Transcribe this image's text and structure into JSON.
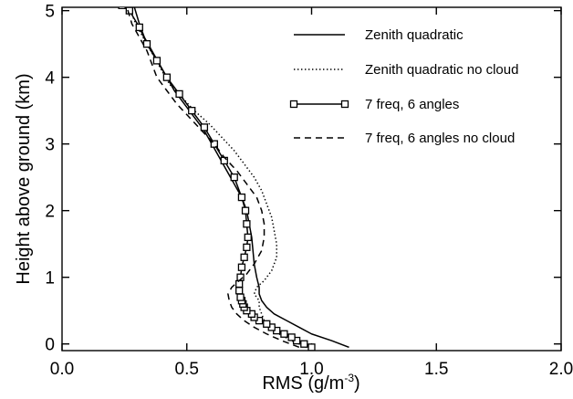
{
  "chart_data": {
    "type": "line",
    "title": "",
    "xlabel": "RMS (g/m⁻³)",
    "xlabel_main": "RMS (g/m",
    "xlabel_sup": "-3",
    "xlabel_end": ")",
    "ylabel": "Height above ground (km)",
    "xlim": [
      0.0,
      2.0
    ],
    "ylim": [
      -0.1,
      5.05
    ],
    "xticks": [
      0.0,
      0.5,
      1.0,
      1.5,
      2.0
    ],
    "xtick_labels": [
      "0.0",
      "0.5",
      "1.0",
      "1.5",
      "2.0"
    ],
    "yticks": [
      0,
      1,
      2,
      3,
      4,
      5
    ],
    "ytick_labels": [
      "0",
      "1",
      "2",
      "3",
      "4",
      "5"
    ],
    "grid": false,
    "legend_position": "top-right",
    "series": [
      {
        "name": "Zenith quadratic",
        "style": "solid",
        "marker": "none",
        "points": [
          [
            1.15,
            -0.05
          ],
          [
            1.08,
            0.05
          ],
          [
            1.0,
            0.15
          ],
          [
            0.95,
            0.25
          ],
          [
            0.9,
            0.35
          ],
          [
            0.85,
            0.45
          ],
          [
            0.82,
            0.55
          ],
          [
            0.8,
            0.65
          ],
          [
            0.79,
            0.75
          ],
          [
            0.79,
            0.85
          ],
          [
            0.78,
            1.0
          ],
          [
            0.77,
            1.2
          ],
          [
            0.765,
            1.4
          ],
          [
            0.76,
            1.6
          ],
          [
            0.75,
            1.8
          ],
          [
            0.74,
            2.0
          ],
          [
            0.72,
            2.2
          ],
          [
            0.69,
            2.4
          ],
          [
            0.66,
            2.6
          ],
          [
            0.63,
            2.8
          ],
          [
            0.6,
            3.0
          ],
          [
            0.57,
            3.2
          ],
          [
            0.53,
            3.4
          ],
          [
            0.49,
            3.6
          ],
          [
            0.45,
            3.8
          ],
          [
            0.42,
            4.0
          ],
          [
            0.39,
            4.2
          ],
          [
            0.36,
            4.4
          ],
          [
            0.33,
            4.6
          ],
          [
            0.31,
            4.8
          ],
          [
            0.29,
            5.05
          ]
        ]
      },
      {
        "name": "Zenith quadratic no cloud",
        "style": "dotted",
        "marker": "none",
        "points": [
          [
            0.98,
            -0.05
          ],
          [
            0.92,
            0.05
          ],
          [
            0.87,
            0.15
          ],
          [
            0.83,
            0.25
          ],
          [
            0.81,
            0.35
          ],
          [
            0.8,
            0.45
          ],
          [
            0.79,
            0.55
          ],
          [
            0.79,
            0.65
          ],
          [
            0.77,
            0.75
          ],
          [
            0.78,
            0.85
          ],
          [
            0.81,
            0.95
          ],
          [
            0.84,
            1.1
          ],
          [
            0.86,
            1.3
          ],
          [
            0.86,
            1.5
          ],
          [
            0.85,
            1.7
          ],
          [
            0.84,
            1.9
          ],
          [
            0.82,
            2.1
          ],
          [
            0.8,
            2.3
          ],
          [
            0.77,
            2.5
          ],
          [
            0.73,
            2.7
          ],
          [
            0.69,
            2.9
          ],
          [
            0.64,
            3.1
          ],
          [
            0.59,
            3.3
          ],
          [
            0.53,
            3.5
          ],
          [
            0.48,
            3.7
          ],
          [
            0.43,
            3.9
          ],
          [
            0.4,
            4.1
          ],
          [
            0.37,
            4.3
          ],
          [
            0.34,
            4.5
          ],
          [
            0.31,
            4.7
          ],
          [
            0.29,
            4.85
          ],
          [
            0.27,
            5.05
          ]
        ]
      },
      {
        "name": "7 freq, 6 angles",
        "style": "solid",
        "marker": "square",
        "points": [
          [
            1.0,
            -0.05
          ],
          [
            0.97,
            0.0
          ],
          [
            0.94,
            0.05
          ],
          [
            0.92,
            0.1
          ],
          [
            0.89,
            0.15
          ],
          [
            0.86,
            0.2
          ],
          [
            0.84,
            0.25
          ],
          [
            0.82,
            0.3
          ],
          [
            0.79,
            0.35
          ],
          [
            0.77,
            0.4
          ],
          [
            0.76,
            0.45
          ],
          [
            0.74,
            0.5
          ],
          [
            0.73,
            0.55
          ],
          [
            0.725,
            0.6
          ],
          [
            0.72,
            0.65
          ],
          [
            0.715,
            0.7
          ],
          [
            0.71,
            0.8
          ],
          [
            0.71,
            0.9
          ],
          [
            0.715,
            1.0
          ],
          [
            0.72,
            1.15
          ],
          [
            0.73,
            1.3
          ],
          [
            0.74,
            1.45
          ],
          [
            0.745,
            1.6
          ],
          [
            0.74,
            1.8
          ],
          [
            0.735,
            2.0
          ],
          [
            0.72,
            2.2
          ],
          [
            0.69,
            2.5
          ],
          [
            0.65,
            2.75
          ],
          [
            0.61,
            3.0
          ],
          [
            0.57,
            3.25
          ],
          [
            0.52,
            3.5
          ],
          [
            0.47,
            3.75
          ],
          [
            0.42,
            4.0
          ],
          [
            0.38,
            4.25
          ],
          [
            0.34,
            4.5
          ],
          [
            0.31,
            4.75
          ],
          [
            0.27,
            5.0
          ],
          [
            0.24,
            5.08
          ]
        ]
      },
      {
        "name": "7 freq, 6 angles no cloud",
        "style": "dashed",
        "marker": "none",
        "points": [
          [
            0.95,
            -0.05
          ],
          [
            0.88,
            0.05
          ],
          [
            0.82,
            0.15
          ],
          [
            0.77,
            0.25
          ],
          [
            0.73,
            0.35
          ],
          [
            0.7,
            0.45
          ],
          [
            0.68,
            0.55
          ],
          [
            0.67,
            0.65
          ],
          [
            0.665,
            0.75
          ],
          [
            0.68,
            0.85
          ],
          [
            0.71,
            0.95
          ],
          [
            0.74,
            1.05
          ],
          [
            0.77,
            1.2
          ],
          [
            0.8,
            1.4
          ],
          [
            0.81,
            1.6
          ],
          [
            0.81,
            1.8
          ],
          [
            0.8,
            2.0
          ],
          [
            0.78,
            2.2
          ],
          [
            0.74,
            2.4
          ],
          [
            0.7,
            2.6
          ],
          [
            0.65,
            2.8
          ],
          [
            0.61,
            3.0
          ],
          [
            0.56,
            3.2
          ],
          [
            0.51,
            3.4
          ],
          [
            0.46,
            3.6
          ],
          [
            0.42,
            3.8
          ],
          [
            0.38,
            4.0
          ],
          [
            0.36,
            4.2
          ],
          [
            0.34,
            4.4
          ],
          [
            0.31,
            4.6
          ],
          [
            0.28,
            4.8
          ],
          [
            0.26,
            5.05
          ]
        ]
      }
    ]
  }
}
